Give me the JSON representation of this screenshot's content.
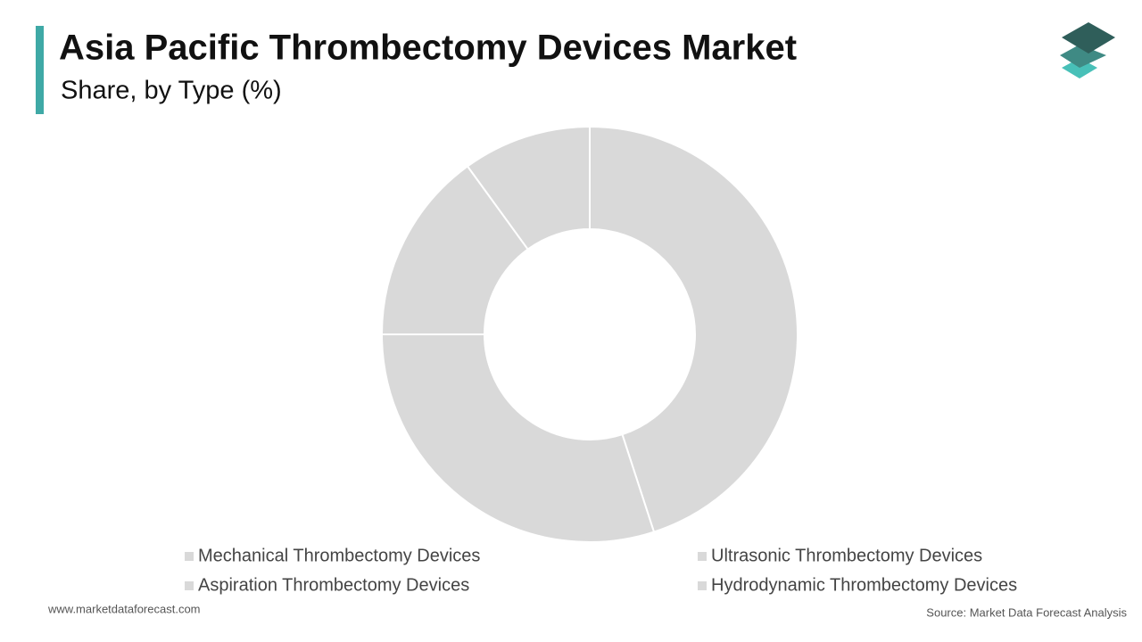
{
  "chart_data": {
    "type": "donut",
    "title": "Asia Pacific Thrombectomy Devices Market",
    "subtitle": "Share, by Type (%)",
    "categories": [
      "Mechanical Thrombectomy Devices",
      "Ultrasonic Thrombectomy Devices",
      "Aspiration Thrombectomy Devices",
      "Hydrodynamic Thrombectomy Devices"
    ],
    "values": [
      45,
      30,
      15,
      10
    ],
    "colors": [
      "#d9d9d9",
      "#d9d9d9",
      "#d9d9d9",
      "#d9d9d9"
    ],
    "legend": "bottom",
    "website": "www.marketdataforecast.com",
    "source": "Source: Market Data Forecast Analysis"
  }
}
